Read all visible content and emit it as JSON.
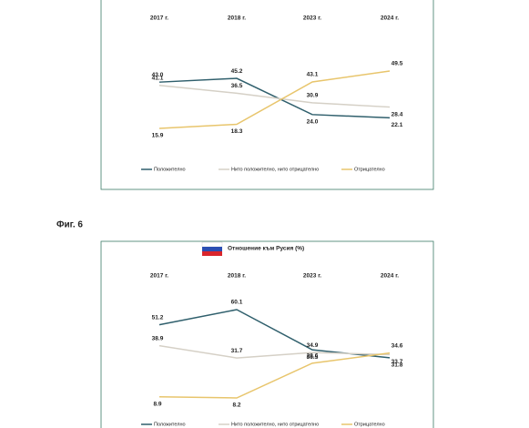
{
  "figure_label": "Фиг. 6",
  "chart_data": [
    {
      "type": "line",
      "categories": [
        "2017 г.",
        "2018 г.",
        "2023 г.",
        "2024 г."
      ],
      "series": [
        {
          "name": "Положително",
          "color": "#2f5f6c",
          "values": [
            43.0,
            45.2,
            24.0,
            22.1
          ],
          "value_labels": [
            "43.0",
            "45.2",
            "24.0",
            "22.1"
          ]
        },
        {
          "name": "Нито положително, нито отрицателно",
          "color": "#d5d0c6",
          "values": [
            41.1,
            36.5,
            30.9,
            28.4
          ]
        },
        {
          "name": "Отрицателно",
          "color": "#e8c56c",
          "values": [
            15.9,
            18.3,
            43.1,
            49.5
          ]
        }
      ]
    },
    {
      "type": "line",
      "title": "Отношение към Русия (%)",
      "categories": [
        "2017 г.",
        "2018 г.",
        "2023 г.",
        "2024 г."
      ],
      "series": [
        {
          "name": "Положително",
          "color": "#2f5f6c",
          "values": [
            51.2,
            60.1,
            36.5,
            31.8
          ]
        },
        {
          "name": "Нито положително, нито отрицателно",
          "color": "#d5d0c6",
          "values": [
            38.9,
            31.7,
            34.9,
            33.7
          ]
        },
        {
          "name": "Отрицателно",
          "color": "#e8c56c",
          "values": [
            8.9,
            8.2,
            28.6,
            34.6
          ]
        }
      ]
    }
  ]
}
